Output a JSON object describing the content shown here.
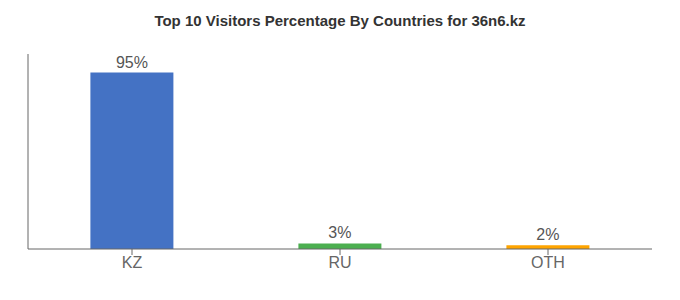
{
  "chart_data": {
    "type": "bar",
    "title": "Top 10 Visitors Percentage By Countries for 36n6.kz",
    "categories": [
      "KZ",
      "RU",
      "OTH"
    ],
    "values": [
      95,
      3,
      2
    ],
    "value_labels": [
      "95%",
      "3%",
      "2%"
    ],
    "colors": [
      "#4472c4",
      "#4caf50",
      "#ffa500"
    ],
    "data_labels": true,
    "ylim": [
      0,
      105
    ],
    "tick_labels": "x",
    "grid": false
  }
}
